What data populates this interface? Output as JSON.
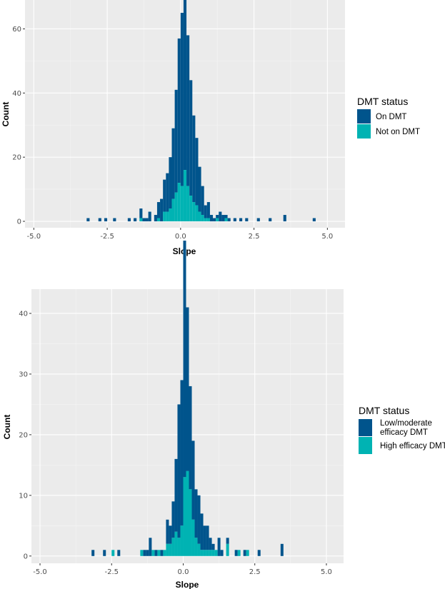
{
  "chart_data": [
    {
      "type": "bar",
      "stacking": "histogram-stacked",
      "xlabel": "Slope",
      "ylabel": "Count",
      "xlim": [
        -5.3,
        5.6
      ],
      "ylim": [
        -2,
        69
      ],
      "xticks": [
        -5.0,
        -2.5,
        0.0,
        2.5,
        5.0
      ],
      "xtick_labels": [
        "-5.0",
        "-2.5",
        "0.0",
        "2.5",
        "5.0"
      ],
      "yticks": [
        0,
        20,
        40,
        60
      ],
      "ytick_labels": [
        "0",
        "20",
        "40",
        "60"
      ],
      "bin_width": 0.1,
      "grid": true,
      "legend": {
        "title": "DMT status",
        "placement": "right",
        "entries": [
          {
            "label": "On DMT",
            "color": "#00548c"
          },
          {
            "label": "Not on DMT",
            "color": "#00b3b3"
          }
        ]
      },
      "series": [
        {
          "name": "On DMT",
          "color": "#00548c",
          "bins": [
            [
              -3.15,
              1
            ],
            [
              -2.75,
              1
            ],
            [
              -2.55,
              1
            ],
            [
              -2.25,
              1
            ],
            [
              -1.75,
              1
            ],
            [
              -1.55,
              1
            ],
            [
              -1.35,
              3
            ],
            [
              -1.25,
              1
            ],
            [
              -1.15,
              1
            ],
            [
              -1.05,
              3
            ],
            [
              -0.85,
              2
            ],
            [
              -0.75,
              5
            ],
            [
              -0.65,
              7
            ],
            [
              -0.55,
              10
            ],
            [
              -0.45,
              12
            ],
            [
              -0.35,
              16
            ],
            [
              -0.25,
              22
            ],
            [
              -0.15,
              32
            ],
            [
              -0.05,
              45
            ],
            [
              0.05,
              54
            ],
            [
              0.15,
              58
            ],
            [
              0.25,
              47
            ],
            [
              0.35,
              36
            ],
            [
              0.45,
              27
            ],
            [
              0.55,
              21
            ],
            [
              0.65,
              14
            ],
            [
              0.75,
              9
            ],
            [
              0.85,
              4
            ],
            [
              0.95,
              5
            ],
            [
              1.05,
              2
            ],
            [
              1.15,
              1
            ],
            [
              1.25,
              1
            ],
            [
              1.35,
              3
            ],
            [
              1.45,
              2
            ],
            [
              1.55,
              1
            ],
            [
              1.65,
              1
            ],
            [
              1.85,
              1
            ],
            [
              2.05,
              1
            ],
            [
              2.25,
              1
            ],
            [
              2.65,
              1
            ],
            [
              3.05,
              1
            ],
            [
              3.55,
              2
            ],
            [
              4.55,
              1
            ]
          ]
        },
        {
          "name": "Not on DMT",
          "color": "#00b3b3",
          "bins": [
            [
              -1.35,
              1
            ],
            [
              -0.75,
              1
            ],
            [
              -0.55,
              3
            ],
            [
              -0.45,
              3
            ],
            [
              -0.35,
              4
            ],
            [
              -0.25,
              7
            ],
            [
              -0.15,
              9
            ],
            [
              -0.05,
              12
            ],
            [
              0.05,
              11
            ],
            [
              0.15,
              16
            ],
            [
              0.25,
              11
            ],
            [
              0.35,
              8
            ],
            [
              0.45,
              6
            ],
            [
              0.55,
              5
            ],
            [
              0.65,
              3
            ],
            [
              0.75,
              2
            ],
            [
              0.85,
              1
            ],
            [
              0.95,
              1
            ],
            [
              1.25,
              1
            ],
            [
              1.55,
              1
            ]
          ]
        }
      ]
    },
    {
      "type": "bar",
      "stacking": "histogram-stacked",
      "xlabel": "Slope",
      "ylabel": "Count",
      "xlim": [
        -5.3,
        5.6
      ],
      "ylim": [
        -1.2,
        44
      ],
      "xticks": [
        -5.0,
        -2.5,
        0.0,
        2.5,
        5.0
      ],
      "xtick_labels": [
        "-5.0",
        "-2.5",
        "0.0",
        "2.5",
        "5.0"
      ],
      "yticks": [
        0,
        10,
        20,
        30,
        40
      ],
      "ytick_labels": [
        "0",
        "10",
        "20",
        "30",
        "40"
      ],
      "bin_width": 0.1,
      "grid": true,
      "legend": {
        "title": "DMT status",
        "placement": "right",
        "entries": [
          {
            "label": "Low/moderate efficacy DMT",
            "color": "#00548c"
          },
          {
            "label": "High efficacy DMT",
            "color": "#00b3b3"
          }
        ]
      },
      "series": [
        {
          "name": "Low/moderate efficacy DMT",
          "color": "#00548c",
          "bins": [
            [
              -3.15,
              1
            ],
            [
              -2.75,
              1
            ],
            [
              -2.25,
              1
            ],
            [
              -1.35,
              1
            ],
            [
              -1.25,
              1
            ],
            [
              -1.15,
              3
            ],
            [
              -0.95,
              1
            ],
            [
              -0.75,
              1
            ],
            [
              -0.55,
              4
            ],
            [
              -0.45,
              3
            ],
            [
              -0.35,
              6
            ],
            [
              -0.25,
              12
            ],
            [
              -0.15,
              22
            ],
            [
              -0.05,
              24
            ],
            [
              0.05,
              39
            ],
            [
              0.15,
              27
            ],
            [
              0.25,
              17
            ],
            [
              0.35,
              13
            ],
            [
              0.45,
              8
            ],
            [
              0.55,
              8
            ],
            [
              0.65,
              6
            ],
            [
              0.75,
              4
            ],
            [
              0.85,
              4
            ],
            [
              0.95,
              2
            ],
            [
              1.05,
              1
            ],
            [
              1.25,
              3
            ],
            [
              1.35,
              1
            ],
            [
              1.55,
              1
            ],
            [
              1.85,
              1
            ],
            [
              2.15,
              1
            ],
            [
              2.65,
              1
            ],
            [
              3.45,
              2
            ]
          ]
        },
        {
          "name": "High efficacy DMT",
          "color": "#00b3b3",
          "bins": [
            [
              -2.45,
              1
            ],
            [
              -1.45,
              1
            ],
            [
              -1.05,
              1
            ],
            [
              -0.85,
              1
            ],
            [
              -0.65,
              1
            ],
            [
              -0.55,
              2
            ],
            [
              -0.45,
              2
            ],
            [
              -0.35,
              3
            ],
            [
              -0.25,
              4
            ],
            [
              -0.15,
              3
            ],
            [
              -0.05,
              5
            ],
            [
              0.05,
              13
            ],
            [
              0.15,
              14
            ],
            [
              0.25,
              11
            ],
            [
              0.35,
              6
            ],
            [
              0.45,
              3
            ],
            [
              0.55,
              2
            ],
            [
              0.65,
              1
            ],
            [
              0.75,
              1
            ],
            [
              0.85,
              1
            ],
            [
              0.95,
              1
            ],
            [
              1.05,
              1
            ],
            [
              1.15,
              1
            ],
            [
              1.55,
              2
            ],
            [
              1.95,
              1
            ],
            [
              2.25,
              1
            ]
          ]
        }
      ]
    }
  ]
}
